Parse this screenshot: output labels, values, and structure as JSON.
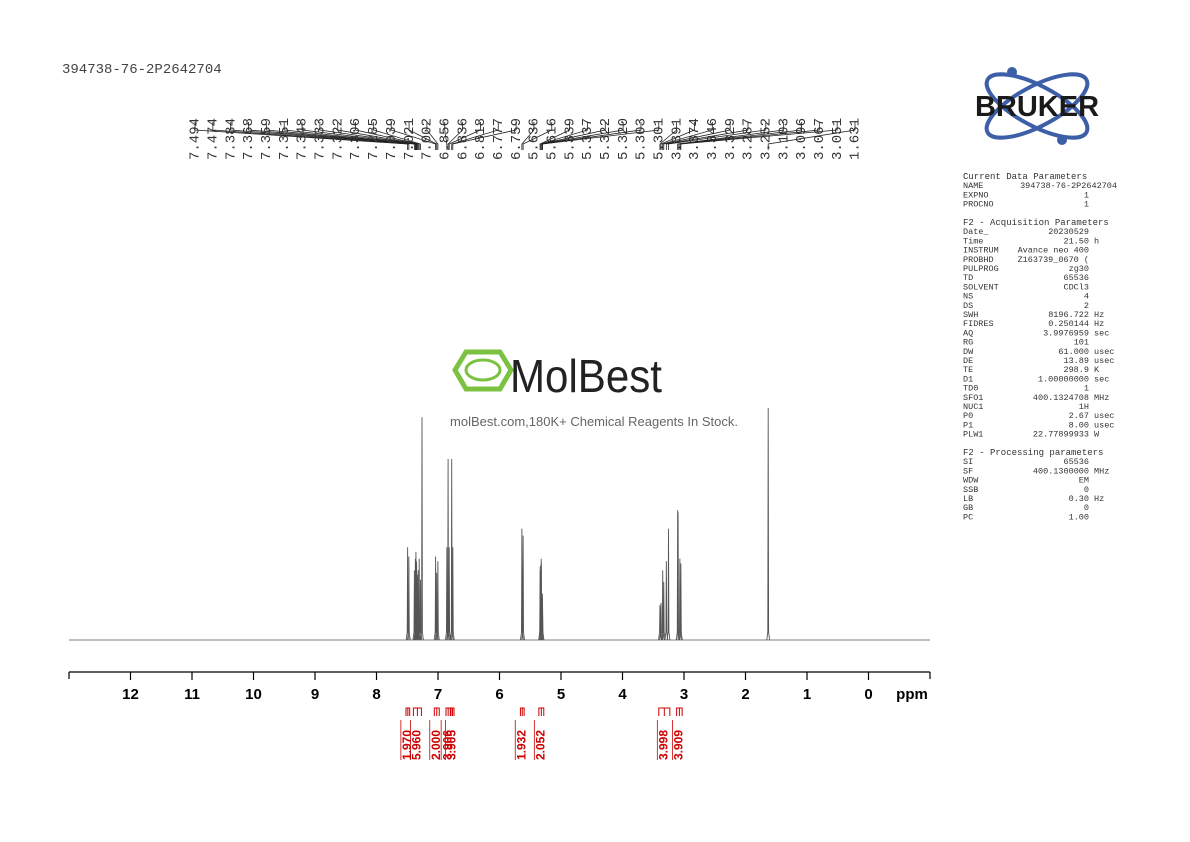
{
  "header": {
    "title": "394738-76-2P2642704"
  },
  "logo": {
    "text": "BRUKER"
  },
  "watermark": {
    "brand": "MolBest",
    "tagline": "molBest.com,180K+ Chemical Reagents In Stock."
  },
  "chart_data": {
    "type": "spectrum",
    "x_label": "ppm",
    "xlim": [
      13,
      -1
    ],
    "xticks": [
      12,
      11,
      10,
      9,
      8,
      7,
      6,
      5,
      4,
      3,
      2,
      1,
      0
    ],
    "color": "#555555",
    "x": [
      7.494,
      7.474,
      7.384,
      7.368,
      7.359,
      7.351,
      7.348,
      7.333,
      7.322,
      7.306,
      7.285,
      7.26,
      7.039,
      7.021,
      7.002,
      6.856,
      6.836,
      6.818,
      6.777,
      6.759,
      5.636,
      5.616,
      5.339,
      5.337,
      5.322,
      5.32,
      5.303,
      5.301,
      3.391,
      3.374,
      3.346,
      3.329,
      3.287,
      3.252,
      3.103,
      3.096,
      3.067,
      3.051,
      1.631
    ],
    "values": [
      40,
      36,
      30,
      35,
      38,
      34,
      33,
      28,
      30,
      35,
      26,
      96,
      36,
      29,
      34,
      40,
      78,
      40,
      78,
      40,
      48,
      45,
      30,
      32,
      35,
      33,
      20,
      18,
      15,
      16,
      30,
      25,
      34,
      48,
      56,
      55,
      35,
      33,
      100
    ],
    "peak_labels": [
      "7.494",
      "7.474",
      "7.384",
      "7.368",
      "7.359",
      "7.351",
      "7.348",
      "7.333",
      "7.322",
      "7.306",
      "7.285",
      null,
      "7.039",
      "7.021",
      "7.002",
      "6.856",
      "6.836",
      "6.818",
      "6.777",
      "6.759",
      "5.636",
      "5.616",
      "5.339",
      "5.337",
      "5.322",
      "5.320",
      "5.303",
      "5.301",
      "3.391",
      "3.374",
      "3.346",
      "3.329",
      "3.287",
      "3.252",
      "3.103",
      "3.096",
      "3.067",
      "3.051",
      "1.631"
    ],
    "integrals": {
      "color": "#cc0000",
      "values": [
        1.97,
        5.96,
        2.0,
        3.906,
        3.905,
        1.932,
        2.052,
        3.998,
        3.909
      ],
      "value_labels": [
        "1.970",
        "5.960",
        "2.000",
        "3.906",
        "3.905",
        "1.932",
        "2.052",
        "3.998",
        "3.909"
      ],
      "ranges": [
        [
          7.52,
          7.46
        ],
        [
          7.4,
          7.27
        ],
        [
          7.06,
          6.98
        ],
        [
          6.87,
          6.8
        ],
        [
          6.79,
          6.74
        ],
        [
          5.66,
          5.6
        ],
        [
          5.36,
          5.28
        ],
        [
          3.41,
          3.23
        ],
        [
          3.12,
          3.03
        ]
      ]
    }
  },
  "parameters": [
    {
      "title": "Current Data Parameters",
      "rows": [
        [
          "NAME",
          "394738-76-2P2642704"
        ],
        [
          "EXPNO",
          "1"
        ],
        [
          "PROCNO",
          "1"
        ]
      ]
    },
    {
      "title": "F2 - Acquisition Parameters",
      "rows": [
        [
          "Date_",
          "20230529"
        ],
        [
          "Time",
          "21.50",
          "h"
        ],
        [
          "INSTRUM",
          "Avance neo 400"
        ],
        [
          "PROBHD",
          "Z163739_0670 ("
        ],
        [
          "PULPROG",
          "zg30"
        ],
        [
          "TD",
          "65536"
        ],
        [
          "SOLVENT",
          "CDCl3"
        ],
        [
          "NS",
          "4"
        ],
        [
          "DS",
          "2"
        ],
        [
          "SWH",
          "8196.722",
          "Hz"
        ],
        [
          "FIDRES",
          "0.250144",
          "Hz"
        ],
        [
          "AQ",
          "3.9976959",
          "sec"
        ],
        [
          "RG",
          "101"
        ],
        [
          "DW",
          "61.000",
          "usec"
        ],
        [
          "DE",
          "13.89",
          "usec"
        ],
        [
          "TE",
          "298.9",
          "K"
        ],
        [
          "D1",
          "1.00000000",
          "sec"
        ],
        [
          "TD0",
          "1"
        ],
        [
          "SFO1",
          "400.1324708",
          "MHz"
        ],
        [
          "NUC1",
          "1H"
        ],
        [
          "P0",
          "2.67",
          "usec"
        ],
        [
          "P1",
          "8.00",
          "usec"
        ],
        [
          "PLW1",
          "22.77899933",
          "W"
        ]
      ]
    },
    {
      "title": "F2 - Processing parameters",
      "rows": [
        [
          "SI",
          "65536"
        ],
        [
          "SF",
          "400.1300000",
          "MHz"
        ],
        [
          "WDW",
          "EM"
        ],
        [
          "SSB",
          "0"
        ],
        [
          "LB",
          "0.30",
          "Hz"
        ],
        [
          "GB",
          "0"
        ],
        [
          "PC",
          "1.00"
        ]
      ]
    }
  ]
}
